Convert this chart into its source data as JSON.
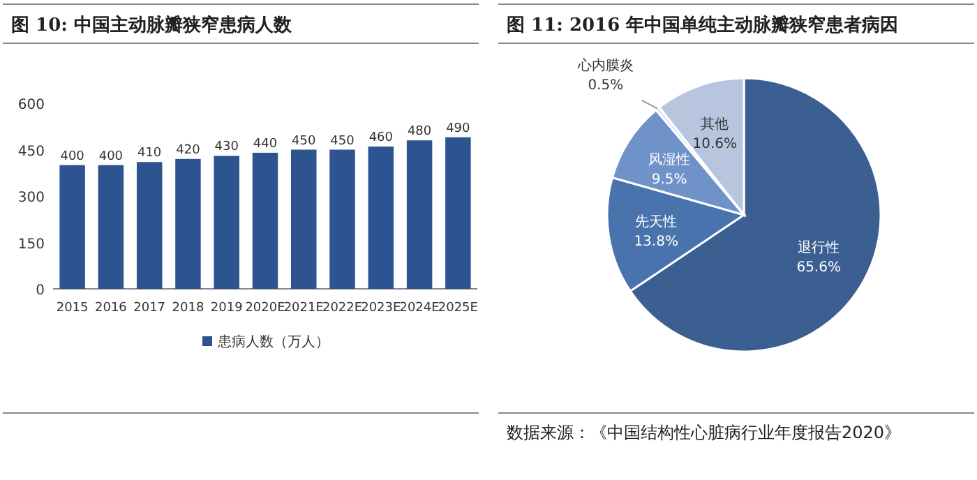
{
  "chart_data": [
    {
      "type": "bar",
      "title": "图 10:  中国主动脉瓣狭窄患病人数",
      "categories": [
        "2015",
        "2016",
        "2017",
        "2018",
        "2019",
        "2020E",
        "2021E",
        "2022E",
        "2023E",
        "2024E",
        "2025E"
      ],
      "series": [
        {
          "name": "患病人数（万人）",
          "color": "#2e5391",
          "values": [
            400,
            400,
            410,
            420,
            430,
            440,
            450,
            450,
            460,
            480,
            490
          ]
        }
      ],
      "ylim": [
        0,
        600
      ],
      "yticks": [
        0,
        150,
        300,
        450,
        600
      ],
      "data_labels": true,
      "legend": "bottom"
    },
    {
      "type": "pie",
      "title": "图 11:  2016 年中国单纯主动脉瓣狭窄患者病因",
      "categories": [
        "退行性",
        "先天性",
        "风湿性",
        "心内膜炎",
        "其他"
      ],
      "values": [
        65.6,
        13.8,
        9.5,
        0.5,
        10.6
      ],
      "value_labels": [
        "65.6%",
        "13.8%",
        "9.5%",
        "0.5%",
        "10.6%"
      ],
      "colors": [
        "#3b5f91",
        "#4873ad",
        "#6f93c8",
        "#dfe6f2",
        "#b7c5de"
      ],
      "annotations": [
        "数据来源：《中国结构性心脏病行业年度报告2020》"
      ]
    }
  ]
}
